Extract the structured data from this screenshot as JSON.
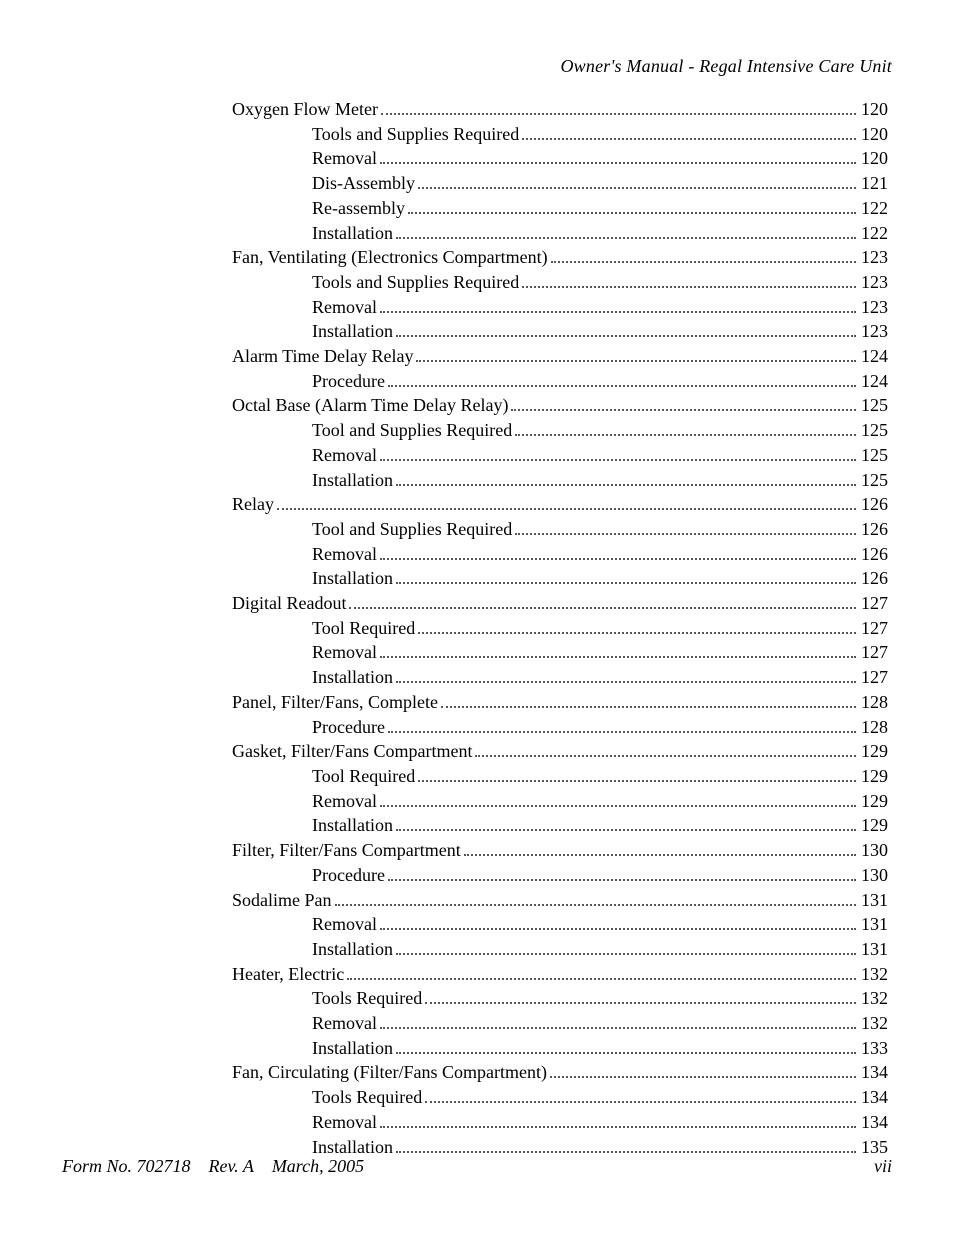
{
  "header": {
    "title": "Owner's Manual - Regal Intensive Care Unit"
  },
  "toc": {
    "entries": [
      {
        "level": 1,
        "title": "Oxygen Flow Meter",
        "page": "120"
      },
      {
        "level": 2,
        "title": "Tools and Supplies Required",
        "page": "120"
      },
      {
        "level": 2,
        "title": "Removal",
        "page": "120"
      },
      {
        "level": 2,
        "title": "Dis-Assembly",
        "page": "121"
      },
      {
        "level": 2,
        "title": "Re-assembly",
        "page": "122"
      },
      {
        "level": 2,
        "title": "Installation",
        "page": "122"
      },
      {
        "level": 1,
        "title": "Fan, Ventilating (Electronics Compartment)",
        "page": "123"
      },
      {
        "level": 2,
        "title": "Tools and Supplies Required",
        "page": "123"
      },
      {
        "level": 2,
        "title": "Removal",
        "page": "123"
      },
      {
        "level": 2,
        "title": "Installation",
        "page": "123"
      },
      {
        "level": 1,
        "title": "Alarm Time Delay Relay",
        "page": "124"
      },
      {
        "level": 2,
        "title": "Procedure",
        "page": "124"
      },
      {
        "level": 1,
        "title": "Octal Base (Alarm Time Delay Relay)",
        "page": "125"
      },
      {
        "level": 2,
        "title": "Tool and Supplies Required",
        "page": "125"
      },
      {
        "level": 2,
        "title": "Removal",
        "page": "125"
      },
      {
        "level": 2,
        "title": "Installation",
        "page": "125"
      },
      {
        "level": 1,
        "title": "Relay",
        "page": "126"
      },
      {
        "level": 2,
        "title": "Tool and Supplies Required",
        "page": "126"
      },
      {
        "level": 2,
        "title": "Removal",
        "page": "126"
      },
      {
        "level": 2,
        "title": "Installation",
        "page": "126"
      },
      {
        "level": 1,
        "title": "Digital Readout",
        "page": "127"
      },
      {
        "level": 2,
        "title": "Tool Required",
        "page": "127"
      },
      {
        "level": 2,
        "title": "Removal",
        "page": "127"
      },
      {
        "level": 2,
        "title": "Installation",
        "page": "127"
      },
      {
        "level": 1,
        "title": "Panel, Filter/Fans, Complete",
        "page": "128"
      },
      {
        "level": 2,
        "title": "Procedure",
        "page": "128"
      },
      {
        "level": 1,
        "title": "Gasket, Filter/Fans Compartment",
        "page": "129"
      },
      {
        "level": 2,
        "title": "Tool Required",
        "page": "129"
      },
      {
        "level": 2,
        "title": "Removal",
        "page": "129"
      },
      {
        "level": 2,
        "title": "Installation",
        "page": "129"
      },
      {
        "level": 1,
        "title": "Filter, Filter/Fans Compartment",
        "page": "130"
      },
      {
        "level": 2,
        "title": "Procedure",
        "page": "130"
      },
      {
        "level": 1,
        "title": "Sodalime Pan",
        "page": "131"
      },
      {
        "level": 2,
        "title": "Removal",
        "page": "131"
      },
      {
        "level": 2,
        "title": "Installation",
        "page": "131"
      },
      {
        "level": 1,
        "title": "Heater, Electric",
        "page": "132"
      },
      {
        "level": 2,
        "title": "Tools Required",
        "page": "132"
      },
      {
        "level": 2,
        "title": "Removal",
        "page": "132"
      },
      {
        "level": 2,
        "title": "Installation",
        "page": "133"
      },
      {
        "level": 1,
        "title": "Fan, Circulating (Filter/Fans Compartment)",
        "page": "134"
      },
      {
        "level": 2,
        "title": "Tools Required",
        "page": "134"
      },
      {
        "level": 2,
        "title": "Removal",
        "page": "134"
      },
      {
        "level": 2,
        "title": "Installation",
        "page": "135"
      }
    ]
  },
  "footer": {
    "left": "Form No. 702718    Rev. A    March, 2005",
    "right": "vii"
  }
}
